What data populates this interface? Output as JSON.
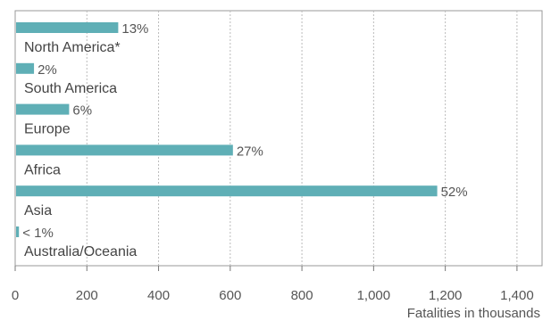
{
  "chart_data": {
    "type": "bar",
    "orientation": "horizontal",
    "categories": [
      "North America*",
      "South America",
      "Europe",
      "Africa",
      "Asia",
      "Australia/Oceania"
    ],
    "values": [
      285,
      50,
      148,
      605,
      1175,
      8
    ],
    "value_labels": [
      "13%",
      "2%",
      "6%",
      "27%",
      "52%",
      "< 1%"
    ],
    "xlabel": "Fatalities in thousands",
    "xlim": [
      0,
      1470
    ],
    "xticks": [
      0,
      200,
      400,
      600,
      800,
      1000,
      1200,
      1400
    ],
    "xtick_labels": [
      "0",
      "200",
      "400",
      "600",
      "800",
      "1,000",
      "1,200",
      "1,400"
    ],
    "grid": "vertical dashed",
    "bar_color": "#5fafb6"
  }
}
